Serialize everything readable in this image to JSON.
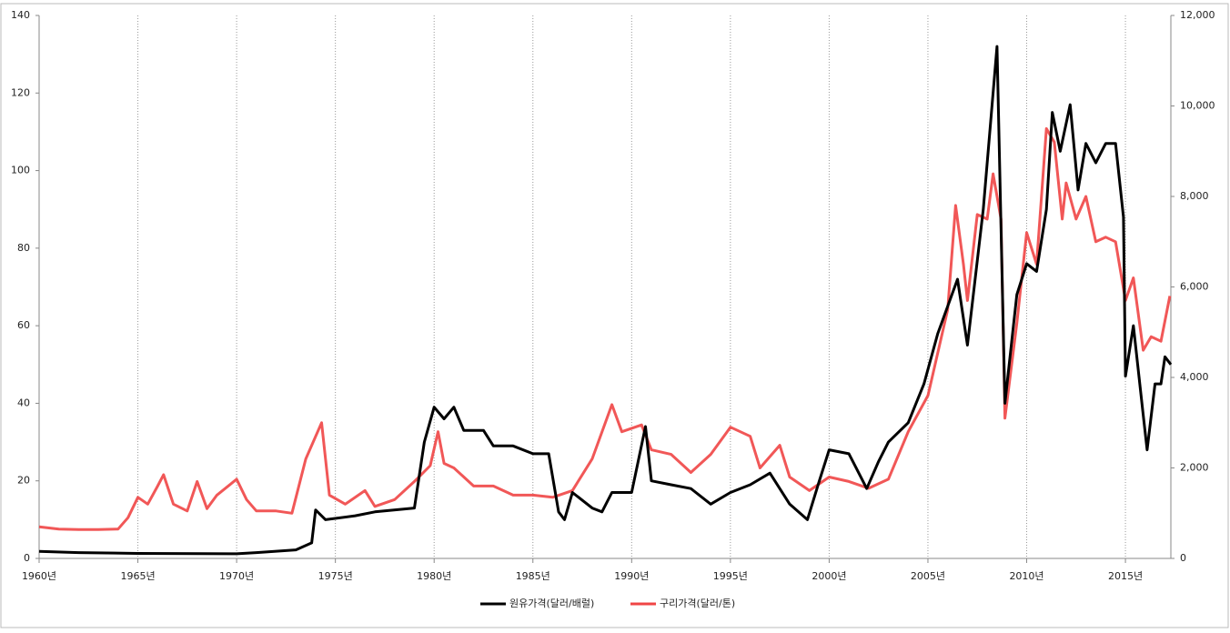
{
  "chart_data": {
    "type": "line",
    "xlim": [
      1960,
      2017.3
    ],
    "xticks": [
      {
        "value": 1960,
        "label": "1960년"
      },
      {
        "value": 1965,
        "label": "1965년"
      },
      {
        "value": 1970,
        "label": "1970년"
      },
      {
        "value": 1975,
        "label": "1975년"
      },
      {
        "value": 1980,
        "label": "1980년"
      },
      {
        "value": 1985,
        "label": "1985년"
      },
      {
        "value": 1990,
        "label": "1990년"
      },
      {
        "value": 1995,
        "label": "1995년"
      },
      {
        "value": 2000,
        "label": "2000년"
      },
      {
        "value": 2005,
        "label": "2005년"
      },
      {
        "value": 2010,
        "label": "2010년"
      },
      {
        "value": 2015,
        "label": "2015년"
      }
    ],
    "ylim": [
      0,
      140
    ],
    "yticks": [
      0,
      20,
      40,
      60,
      80,
      100,
      120,
      140
    ],
    "y2lim": [
      0,
      12000
    ],
    "y2ticks": [
      0,
      {
        "value": 2000,
        "label": "2,000"
      },
      {
        "value": 4000,
        "label": "4,000"
      },
      {
        "value": 6000,
        "label": "6,000"
      },
      {
        "value": 8000,
        "label": "8,000"
      },
      {
        "value": 10000,
        "label": "10,000"
      },
      {
        "value": 12000,
        "label": "12,000"
      }
    ],
    "grid": "x",
    "legend": "bottom",
    "series": [
      {
        "name": "원유가격(달러/배럴)",
        "color": "#000000",
        "x": [
          1960,
          1962,
          1965,
          1970,
          1971,
          1973,
          1973.8,
          1974,
          1974.5,
          1976,
          1977,
          1979,
          1979.5,
          1980,
          1980.5,
          1981,
          1981.5,
          1982.5,
          1983,
          1984,
          1985,
          1985.8,
          1986.3,
          1986.6,
          1987,
          1988,
          1988.5,
          1989,
          1990,
          1990.7,
          1991,
          1992,
          1993,
          1994,
          1995,
          1996,
          1997,
          1998,
          1998.9,
          1999.5,
          2000,
          2001,
          2001.9,
          2002.5,
          2003,
          2004,
          2004.8,
          2005.5,
          2006.5,
          2007,
          2007.8,
          2008.5,
          2008.9,
          2009.5,
          2010,
          2010.5,
          2011,
          2011.3,
          2011.7,
          2012.2,
          2012.6,
          2013,
          2013.5,
          2014,
          2014.5,
          2014.9,
          2015,
          2015.4,
          2015.9,
          2016.1,
          2016.5,
          2016.8,
          2017,
          2017.3
        ],
        "values": [
          1.8,
          1.5,
          1.3,
          1.2,
          1.5,
          2.2,
          4,
          12.5,
          10,
          11,
          12,
          13,
          30,
          39,
          36,
          39,
          33,
          33,
          29,
          29,
          27,
          27,
          12,
          10,
          17,
          13,
          12,
          17,
          17,
          34,
          20,
          19,
          18,
          14,
          17,
          19,
          22,
          14,
          10,
          20,
          28,
          27,
          18,
          25,
          30,
          35,
          45,
          58,
          72,
          55,
          90,
          132,
          40,
          68,
          76,
          74,
          90,
          115,
          105,
          117,
          95,
          107,
          102,
          107,
          107,
          88,
          47,
          60,
          37,
          28,
          45,
          45,
          52,
          50
        ]
      },
      {
        "name": "구리가격(달러/톤)",
        "color": "#f04545",
        "axis": "y2",
        "x": [
          1960,
          1961,
          1962,
          1963,
          1964,
          1964.5,
          1965,
          1965.5,
          1966,
          1966.3,
          1966.8,
          1967.5,
          1968,
          1968.5,
          1969,
          1970,
          1970.5,
          1971,
          1972,
          1972.8,
          1973.5,
          1974.3,
          1974.7,
          1975.5,
          1976.5,
          1977,
          1978,
          1979,
          1979.8,
          1980.2,
          1980.5,
          1981,
          1982,
          1983,
          1984,
          1985,
          1986,
          1987,
          1988,
          1989,
          1989.5,
          1990.5,
          1991,
          1992,
          1993,
          1994,
          1995,
          1996,
          1996.5,
          1997.5,
          1998,
          1999,
          2000,
          2001,
          2002,
          2003,
          2004,
          2005,
          2006,
          2006.4,
          2006.8,
          2007,
          2007.5,
          2008,
          2008.3,
          2008.7,
          2008.9,
          2009.5,
          2010,
          2010.5,
          2011,
          2011.4,
          2011.8,
          2012,
          2012.5,
          2013,
          2013.5,
          2014,
          2014.5,
          2015,
          2015.4,
          2015.9,
          2016.3,
          2016.8,
          2017.25
        ],
        "values": [
          700,
          650,
          640,
          640,
          650,
          900,
          1350,
          1200,
          1600,
          1850,
          1200,
          1050,
          1700,
          1100,
          1400,
          1750,
          1300,
          1050,
          1050,
          1000,
          2200,
          3000,
          1400,
          1200,
          1500,
          1150,
          1300,
          1700,
          2050,
          2800,
          2100,
          2000,
          1600,
          1600,
          1400,
          1400,
          1350,
          1500,
          2200,
          3400,
          2800,
          2950,
          2400,
          2300,
          1900,
          2300,
          2900,
          2700,
          2000,
          2500,
          1800,
          1500,
          1800,
          1700,
          1550,
          1750,
          2800,
          3600,
          5500,
          7800,
          6500,
          5700,
          7600,
          7500,
          8500,
          7500,
          3100,
          5200,
          7200,
          6500,
          9500,
          9200,
          7500,
          8300,
          7500,
          8000,
          7000,
          7100,
          7000,
          5700,
          6200,
          4600,
          4900,
          4800,
          5800
        ]
      }
    ]
  }
}
